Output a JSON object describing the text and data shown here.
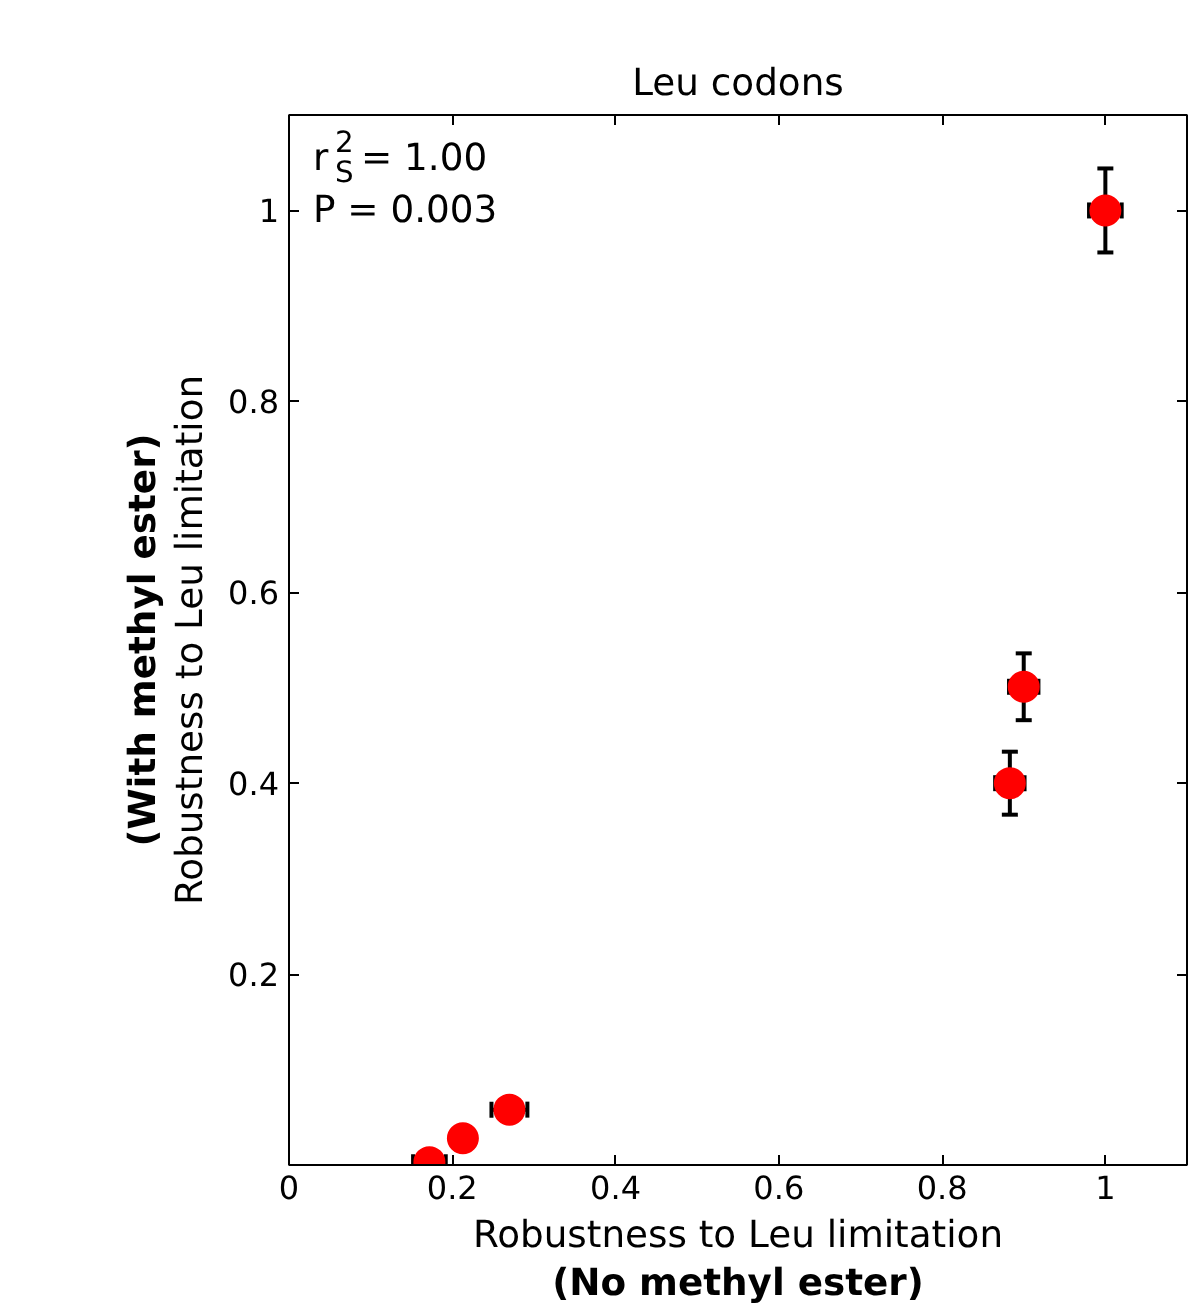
{
  "chart_data": {
    "type": "scatter",
    "title": "Leu codons",
    "xlabel": "Robustness to Leu limitation\n(No methyl ester)",
    "ylabel": "Robustness to Leu limitation\n(With methyl ester)",
    "x": [
      0.172,
      0.213,
      0.27,
      0.883,
      0.9,
      1.0
    ],
    "series": [
      {
        "color": "#ff0000",
        "values": [
          0.003,
          0.028,
          0.058,
          0.4,
          0.501,
          1.0
        ],
        "errors": [
          null,
          null,
          null,
          0.033,
          0.035,
          0.044
        ],
        "xerrors": [
          0.02,
          null,
          0.022,
          0.018,
          0.018,
          0.02
        ]
      }
    ],
    "xlim": [
      0,
      1.1
    ],
    "ylim": [
      0,
      1.1
    ],
    "xticks": [
      0,
      0.2,
      0.4,
      0.6,
      0.8,
      1
    ],
    "yticks": [
      0.2,
      0.4,
      0.6,
      0.8,
      1
    ],
    "marker": "circle",
    "grid": false,
    "annotations": [
      "r$_{S}$$^{2}$ = 1.00",
      "P = 0.003"
    ]
  }
}
